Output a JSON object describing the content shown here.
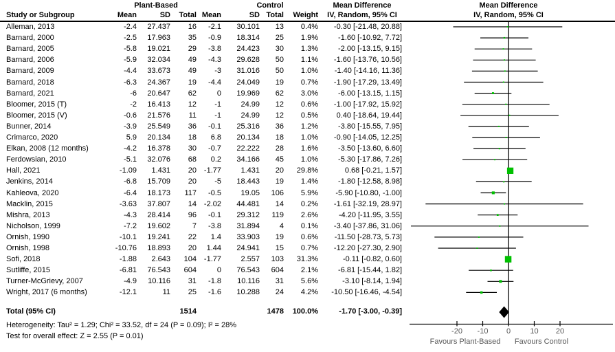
{
  "header": {
    "group_plant": "Plant-Based",
    "group_control": "Control",
    "study_col": "Study or Subgroup",
    "mean_col": "Mean",
    "sd_col": "SD",
    "total_col": "Total",
    "weight_col": "Weight",
    "md_title": "Mean Difference",
    "md_subtitle": "IV, Random, 95% CI"
  },
  "chart_data": {
    "type": "forest",
    "effect_measure": "Mean Difference",
    "model": "IV, Random, 95% CI",
    "studies": [
      {
        "name": "Alleman, 2013",
        "pb_mean": "-2.4",
        "pb_sd": "27.437",
        "pb_total": "16",
        "c_mean": "-2.1",
        "c_sd": "30.101",
        "c_total": "13",
        "weight": 0.4,
        "md": -0.3,
        "lo": -21.48,
        "hi": 20.88
      },
      {
        "name": "Barnard, 2000",
        "pb_mean": "-2.5",
        "pb_sd": "17.963",
        "pb_total": "35",
        "c_mean": "-0.9",
        "c_sd": "18.314",
        "c_total": "25",
        "weight": 1.9,
        "md": -1.6,
        "lo": -10.92,
        "hi": 7.72
      },
      {
        "name": "Barnard, 2005",
        "pb_mean": "-5.8",
        "pb_sd": "19.021",
        "pb_total": "29",
        "c_mean": "-3.8",
        "c_sd": "24.423",
        "c_total": "30",
        "weight": 1.3,
        "md": -2.0,
        "lo": -13.15,
        "hi": 9.15
      },
      {
        "name": "Barnard, 2006",
        "pb_mean": "-5.9",
        "pb_sd": "32.034",
        "pb_total": "49",
        "c_mean": "-4.3",
        "c_sd": "29.628",
        "c_total": "50",
        "weight": 1.1,
        "md": -1.6,
        "lo": -13.76,
        "hi": 10.56
      },
      {
        "name": "Barnard, 2009",
        "pb_mean": "-4.4",
        "pb_sd": "33.673",
        "pb_total": "49",
        "c_mean": "-3",
        "c_sd": "31.016",
        "c_total": "50",
        "weight": 1.0,
        "md": -1.4,
        "lo": -14.16,
        "hi": 11.36
      },
      {
        "name": "Barnard, 2018",
        "pb_mean": "-6.3",
        "pb_sd": "24.367",
        "pb_total": "19",
        "c_mean": "-4.4",
        "c_sd": "24.049",
        "c_total": "19",
        "weight": 0.7,
        "md": -1.9,
        "lo": -17.29,
        "hi": 13.49
      },
      {
        "name": "Barnard, 2021",
        "pb_mean": "-6",
        "pb_sd": "20.647",
        "pb_total": "62",
        "c_mean": "0",
        "c_sd": "19.969",
        "c_total": "62",
        "weight": 3.0,
        "md": -6.0,
        "lo": -13.15,
        "hi": 1.15
      },
      {
        "name": "Bloomer, 2015 (T)",
        "pb_mean": "-2",
        "pb_sd": "16.413",
        "pb_total": "12",
        "c_mean": "-1",
        "c_sd": "24.99",
        "c_total": "12",
        "weight": 0.6,
        "md": -1.0,
        "lo": -17.92,
        "hi": 15.92
      },
      {
        "name": "Bloomer, 2015 (V)",
        "pb_mean": "-0.6",
        "pb_sd": "21.576",
        "pb_total": "11",
        "c_mean": "-1",
        "c_sd": "24.99",
        "c_total": "12",
        "weight": 0.5,
        "md": 0.4,
        "lo": -18.64,
        "hi": 19.44
      },
      {
        "name": "Bunner, 2014",
        "pb_mean": "-3.9",
        "pb_sd": "25.549",
        "pb_total": "36",
        "c_mean": "-0.1",
        "c_sd": "25.316",
        "c_total": "36",
        "weight": 1.2,
        "md": -3.8,
        "lo": -15.55,
        "hi": 7.95
      },
      {
        "name": "Crimarco, 2020",
        "pb_mean": "5.9",
        "pb_sd": "20.134",
        "pb_total": "18",
        "c_mean": "6.8",
        "c_sd": "20.134",
        "c_total": "18",
        "weight": 1.0,
        "md": -0.9,
        "lo": -14.05,
        "hi": 12.25
      },
      {
        "name": "Elkan, 2008 (12 months)",
        "pb_mean": "-4.2",
        "pb_sd": "16.378",
        "pb_total": "30",
        "c_mean": "-0.7",
        "c_sd": "22.222",
        "c_total": "28",
        "weight": 1.6,
        "md": -3.5,
        "lo": -13.6,
        "hi": 6.6
      },
      {
        "name": "Ferdowsian, 2010",
        "pb_mean": "-5.1",
        "pb_sd": "32.076",
        "pb_total": "68",
        "c_mean": "0.2",
        "c_sd": "34.166",
        "c_total": "45",
        "weight": 1.0,
        "md": -5.3,
        "lo": -17.86,
        "hi": 7.26
      },
      {
        "name": "Hall, 2021",
        "pb_mean": "-1.09",
        "pb_sd": "1.431",
        "pb_total": "20",
        "c_mean": "-1.77",
        "c_sd": "1.431",
        "c_total": "20",
        "weight": 29.8,
        "md": 0.68,
        "lo": -0.21,
        "hi": 1.57
      },
      {
        "name": "Jenkins, 2014",
        "pb_mean": "-6.8",
        "pb_sd": "15.709",
        "pb_total": "20",
        "c_mean": "-5",
        "c_sd": "18.443",
        "c_total": "19",
        "weight": 1.4,
        "md": -1.8,
        "lo": -12.58,
        "hi": 8.98
      },
      {
        "name": "Kahleova, 2020",
        "pb_mean": "-6.4",
        "pb_sd": "18.173",
        "pb_total": "117",
        "c_mean": "-0.5",
        "c_sd": "19.05",
        "c_total": "106",
        "weight": 5.9,
        "md": -5.9,
        "lo": -10.8,
        "hi": -1.0
      },
      {
        "name": "Macklin, 2015",
        "pb_mean": "-3.63",
        "pb_sd": "37.807",
        "pb_total": "14",
        "c_mean": "-2.02",
        "c_sd": "44.481",
        "c_total": "14",
        "weight": 0.2,
        "md": -1.61,
        "lo": -32.19,
        "hi": 28.97
      },
      {
        "name": "Mishra, 2013",
        "pb_mean": "-4.3",
        "pb_sd": "28.414",
        "pb_total": "96",
        "c_mean": "-0.1",
        "c_sd": "29.312",
        "c_total": "119",
        "weight": 2.6,
        "md": -4.2,
        "lo": -11.95,
        "hi": 3.55
      },
      {
        "name": "Nicholson, 1999",
        "pb_mean": "-7.2",
        "pb_sd": "19.602",
        "pb_total": "7",
        "c_mean": "-3.8",
        "c_sd": "31.894",
        "c_total": "4",
        "weight": 0.1,
        "md": -3.4,
        "lo": -37.86,
        "hi": 31.06
      },
      {
        "name": "Ornish, 1990",
        "pb_mean": "-10.1",
        "pb_sd": "19.241",
        "pb_total": "22",
        "c_mean": "1.4",
        "c_sd": "33.903",
        "c_total": "19",
        "weight": 0.6,
        "md": -11.5,
        "lo": -28.73,
        "hi": 5.73
      },
      {
        "name": "Ornish, 1998",
        "pb_mean": "-10.76",
        "pb_sd": "18.893",
        "pb_total": "20",
        "c_mean": "1.44",
        "c_sd": "24.941",
        "c_total": "15",
        "weight": 0.7,
        "md": -12.2,
        "lo": -27.3,
        "hi": 2.9
      },
      {
        "name": "Sofi, 2018",
        "pb_mean": "-1.88",
        "pb_sd": "2.643",
        "pb_total": "104",
        "c_mean": "-1.77",
        "c_sd": "2.557",
        "c_total": "103",
        "weight": 31.3,
        "md": -0.11,
        "lo": -0.82,
        "hi": 0.6
      },
      {
        "name": "Sutliffe, 2015",
        "pb_mean": "-6.81",
        "pb_sd": "76.543",
        "pb_total": "604",
        "c_mean": "0",
        "c_sd": "76.543",
        "c_total": "604",
        "weight": 2.1,
        "md": -6.81,
        "lo": -15.44,
        "hi": 1.82
      },
      {
        "name": "Turner-McGrievy, 2007",
        "pb_mean": "-4.9",
        "pb_sd": "10.116",
        "pb_total": "31",
        "c_mean": "-1.8",
        "c_sd": "10.116",
        "c_total": "31",
        "weight": 5.6,
        "md": -3.1,
        "lo": -8.14,
        "hi": 1.94
      },
      {
        "name": "Wright, 2017 (6 months)",
        "pb_mean": "-12.1",
        "pb_sd": "11",
        "pb_total": "25",
        "c_mean": "-1.6",
        "c_sd": "10.288",
        "c_total": "24",
        "weight": 4.2,
        "md": -10.5,
        "lo": -16.46,
        "hi": -4.54
      }
    ],
    "total": {
      "label": "Total (95% CI)",
      "pb_total": "1514",
      "c_total": "1478",
      "weight": 100.0,
      "md": -1.7,
      "lo": -3.0,
      "hi": -0.39
    },
    "heterogeneity": "Heterogeneity: Tau² = 1.29; Chi² = 33.52, df = 24 (P = 0.09); I² = 28%",
    "overall_effect": "Test for overall effect: Z = 2.55 (P = 0.01)",
    "axis": {
      "ticks": [
        -20,
        -10,
        0,
        10,
        20
      ],
      "xmin": -38.5,
      "xmax": 40.5,
      "favours_left": "Favours Plant-Based",
      "favours_right": "Favours Control"
    },
    "colors": {
      "square": "#00c000",
      "diamond": "#000000",
      "ci_line": "#000000",
      "axis_text": "#555555",
      "text": "#000000"
    }
  }
}
